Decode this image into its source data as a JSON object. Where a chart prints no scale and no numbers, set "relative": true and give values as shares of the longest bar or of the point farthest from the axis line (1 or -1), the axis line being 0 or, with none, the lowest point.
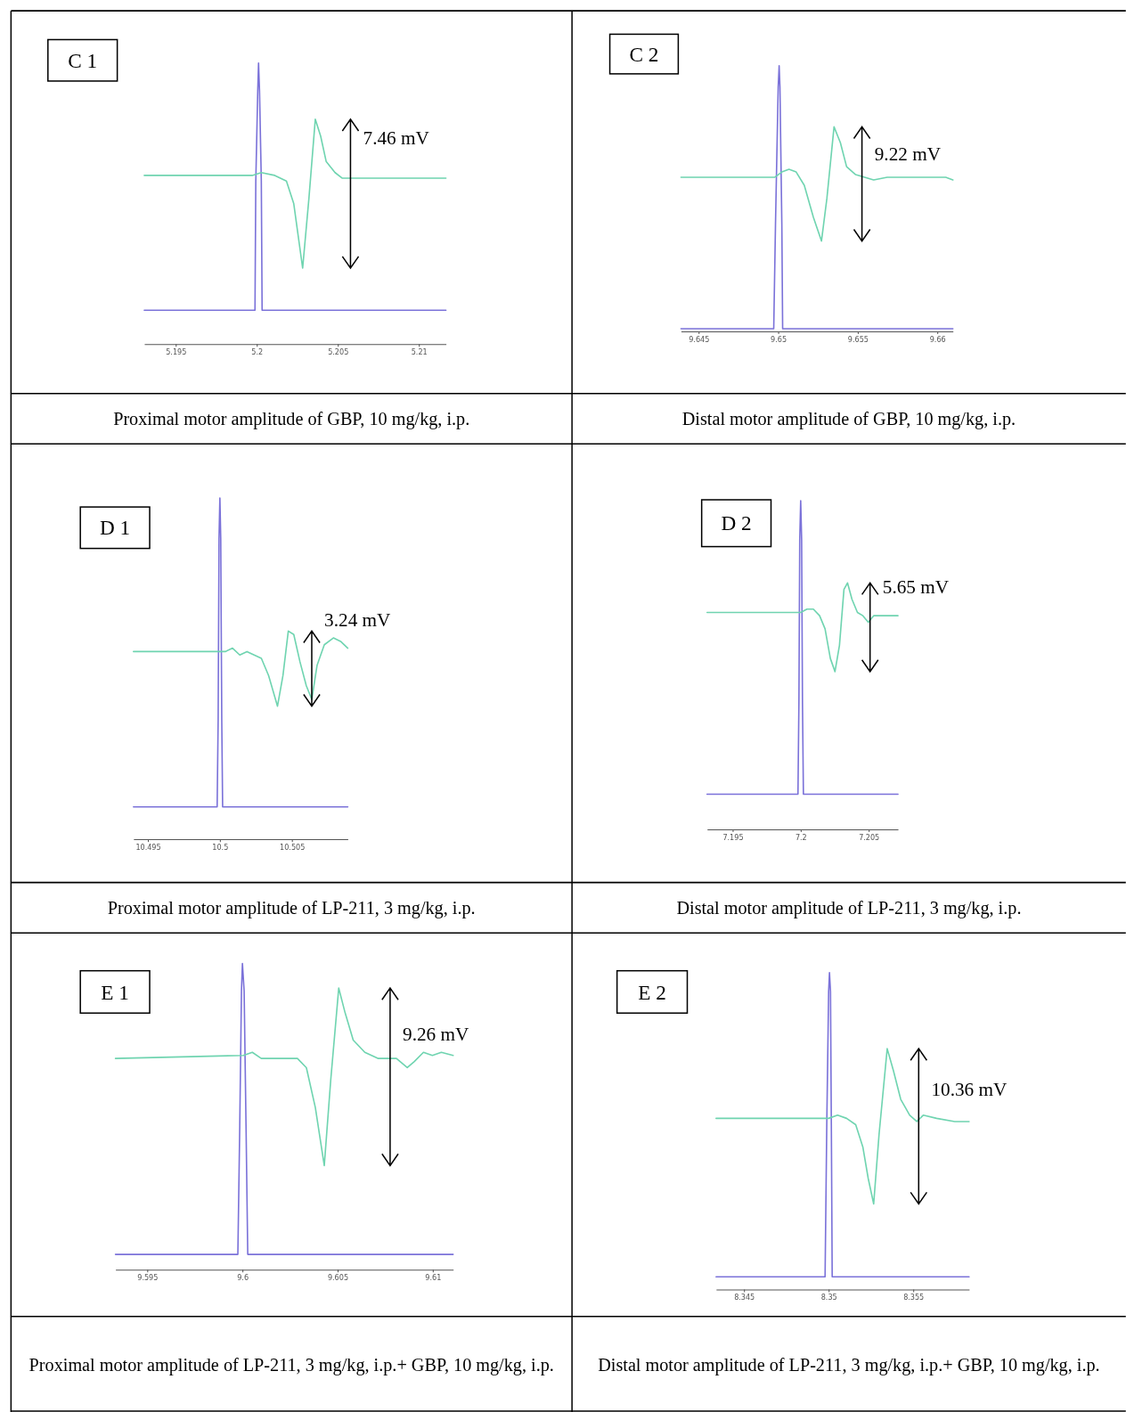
{
  "chart_data": [
    {
      "type": "line",
      "title": "C 1",
      "subtitle": "Proximal motor amplitude of GBP, 10 mg/kg, i.p.",
      "relative": true,
      "tick_labels": "x",
      "xlim": [
        5.19306,
        5.21167
      ],
      "xticks": [
        5.195,
        5.2,
        5.205,
        5.21
      ],
      "annotations": [
        "7.46 mV"
      ],
      "series": [
        {
          "color": "#7b72d9",
          "x": [
            5.19306,
            5.19989,
            5.19994,
            5.20006,
            5.20011,
            5.20017,
            5.20028,
            5.20033,
            5.21167
          ],
          "values": [
            0.12,
            0.12,
            0.58,
            0.9,
            1,
            0.9,
            0.58,
            0.12,
            0.12
          ]
        },
        {
          "color": "#6fd4b0",
          "x": [
            5.19306,
            5.19972,
            5.20028,
            5.20111,
            5.20183,
            5.20228,
            5.20283,
            5.20322,
            5.20361,
            5.20394,
            5.20428,
            5.20483,
            5.20528,
            5.20639,
            5.21167
          ],
          "values": [
            0.6,
            0.6,
            0.61,
            0.6,
            0.58,
            0.5,
            0.27,
            0.52,
            0.8,
            0.74,
            0.65,
            0.61,
            0.59,
            0.59,
            0.59
          ]
        }
      ]
    },
    {
      "type": "line",
      "title": "C 2",
      "subtitle": "Distal motor amplitude of GBP, 10 mg/kg, i.p.",
      "relative": true,
      "tick_labels": "x",
      "xlim": [
        9.64389,
        9.66098
      ],
      "xticks": [
        9.645,
        9.65,
        9.655,
        9.66
      ],
      "annotations": [
        "9.22 mV"
      ],
      "series": [
        {
          "color": "#7b72d9",
          "x": [
            9.64389,
            9.64972,
            9.64983,
            9.65,
            9.65006,
            9.65011,
            9.65023,
            9.65028,
            9.66098
          ],
          "values": [
            0.01,
            0.01,
            0.4,
            0.92,
            1,
            0.92,
            0.4,
            0.01,
            0.01
          ]
        },
        {
          "color": "#6fd4b0",
          "x": [
            9.64389,
            9.64977,
            9.65023,
            9.65068,
            9.65113,
            9.65164,
            9.65221,
            9.65272,
            9.65306,
            9.65351,
            9.65391,
            9.6543,
            9.65487,
            9.656,
            9.65685,
            9.6577,
            9.65883,
            9.66,
            9.66053,
            9.66098
          ],
          "values": [
            0.58,
            0.58,
            0.6,
            0.61,
            0.6,
            0.55,
            0.43,
            0.34,
            0.5,
            0.77,
            0.71,
            0.62,
            0.59,
            0.57,
            0.58,
            0.58,
            0.58,
            0.58,
            0.58,
            0.57
          ]
        }
      ]
    },
    {
      "type": "line",
      "title": "D 1",
      "subtitle": "Proximal motor amplitude of LP-211, 3 mg/kg, i.p.",
      "relative": true,
      "tick_labels": "x",
      "xlim": [
        10.494,
        10.50888
      ],
      "xticks": [
        10.495,
        10.5,
        10.505
      ],
      "annotations": [
        "3.24 mV"
      ],
      "series": [
        {
          "color": "#7b72d9",
          "x": [
            10.494,
            10.49981,
            10.49988,
            10.49994,
            10.5,
            10.50006,
            10.50013,
            10.50019,
            10.50888
          ],
          "values": [
            0.095,
            0.095,
            0.35,
            0.88,
            1,
            0.88,
            0.35,
            0.095,
            0.095
          ]
        },
        {
          "color": "#6fd4b0",
          "x": [
            10.494,
            10.5,
            10.50038,
            10.50088,
            10.50138,
            10.50188,
            10.50238,
            10.50288,
            10.50338,
            10.504,
            10.50438,
            10.50475,
            10.50513,
            10.50556,
            10.506,
            10.50638,
            10.50675,
            10.50725,
            10.50788,
            10.50838,
            10.50888
          ],
          "values": [
            0.55,
            0.55,
            0.55,
            0.56,
            0.54,
            0.55,
            0.54,
            0.53,
            0.48,
            0.39,
            0.48,
            0.61,
            0.6,
            0.52,
            0.45,
            0.41,
            0.51,
            0.57,
            0.59,
            0.58,
            0.56
          ]
        }
      ]
    },
    {
      "type": "line",
      "title": "D 2",
      "subtitle": "Distal motor amplitude of LP-211, 3 mg/kg, i.p.",
      "relative": true,
      "tick_labels": "x",
      "xlim": [
        7.19312,
        7.20715
      ],
      "xticks": [
        7.195,
        7.2,
        7.205
      ],
      "annotations": [
        "5.65 mV"
      ],
      "series": [
        {
          "color": "#7b72d9",
          "x": [
            7.19312,
            7.1998,
            7.19987,
            7.19993,
            7.2,
            7.20007,
            7.20013,
            7.2002,
            7.20715
          ],
          "values": [
            0.107,
            0.107,
            0.39,
            0.88,
            1,
            0.88,
            0.39,
            0.107,
            0.107
          ]
        },
        {
          "color": "#6fd4b0",
          "x": [
            7.19312,
            7.2,
            7.20046,
            7.20093,
            7.20139,
            7.20179,
            7.20218,
            7.20252,
            7.20285,
            7.20318,
            7.20344,
            7.20377,
            7.20417,
            7.20457,
            7.20497,
            7.20536,
            7.20589,
            7.20655,
            7.20715
          ],
          "values": [
            0.66,
            0.66,
            0.67,
            0.67,
            0.65,
            0.61,
            0.52,
            0.48,
            0.56,
            0.73,
            0.75,
            0.7,
            0.66,
            0.65,
            0.63,
            0.65,
            0.65,
            0.65,
            0.65
          ]
        }
      ]
    },
    {
      "type": "line",
      "title": "E 1",
      "subtitle": "Proximal motor amplitude of LP-211, 3 mg/kg, i.p.+ GBP, 10 mg/kg, i.p.",
      "relative": true,
      "tick_labels": "x",
      "xlim": [
        9.59333,
        9.61107
      ],
      "xticks": [
        9.595,
        9.6,
        9.605,
        9.61
      ],
      "annotations": [
        "9.26 mV"
      ],
      "series": [
        {
          "color": "#7b72d9",
          "x": [
            9.59333,
            9.59976,
            9.59986,
            9.59995,
            9.6,
            9.60009,
            9.60019,
            9.60028,
            9.61107
          ],
          "values": [
            0.05,
            0.05,
            0.47,
            0.91,
            1,
            0.91,
            0.47,
            0.05,
            0.05
          ]
        },
        {
          "color": "#6fd4b0",
          "x": [
            9.59333,
            9.60005,
            9.60052,
            9.60099,
            9.60147,
            9.60289,
            9.60336,
            9.60383,
            9.6043,
            9.60464,
            9.60506,
            9.60539,
            9.60582,
            9.60643,
            9.60714,
            9.60809,
            9.60866,
            9.60903,
            9.60951,
            9.60998,
            9.61045,
            9.61107
          ],
          "values": [
            0.69,
            0.7,
            0.71,
            0.69,
            0.69,
            0.69,
            0.66,
            0.53,
            0.34,
            0.62,
            0.92,
            0.84,
            0.75,
            0.71,
            0.69,
            0.69,
            0.66,
            0.68,
            0.71,
            0.7,
            0.71,
            0.7
          ]
        }
      ]
    },
    {
      "type": "line",
      "title": "E 2",
      "subtitle": "Distal motor amplitude of LP-211, 3 mg/kg, i.p.+ GBP, 10 mg/kg, i.p.",
      "relative": true,
      "tick_labels": "x",
      "xlim": [
        8.34335,
        8.3583
      ],
      "xticks": [
        8.345,
        8.35,
        8.355
      ],
      "annotations": [
        "10.36 mV"
      ],
      "series": [
        {
          "color": "#7b72d9",
          "x": [
            8.34335,
            8.34979,
            8.34989,
            8.35,
            8.35005,
            8.35011,
            8.35016,
            8.35021,
            8.3583
          ],
          "values": [
            0.04,
            0.04,
            0.52,
            0.94,
            1,
            0.94,
            0.52,
            0.04,
            0.04
          ]
        },
        {
          "color": "#6fd4b0",
          "x": [
            8.34335,
            8.35,
            8.35053,
            8.35106,
            8.3516,
            8.35202,
            8.35234,
            8.35266,
            8.35298,
            8.35346,
            8.35383,
            8.35426,
            8.35479,
            8.35521,
            8.35559,
            8.35638,
            8.35745,
            8.3583
          ],
          "values": [
            0.54,
            0.54,
            0.55,
            0.54,
            0.52,
            0.45,
            0.35,
            0.27,
            0.49,
            0.76,
            0.69,
            0.6,
            0.55,
            0.53,
            0.55,
            0.54,
            0.53,
            0.53
          ]
        }
      ]
    }
  ]
}
